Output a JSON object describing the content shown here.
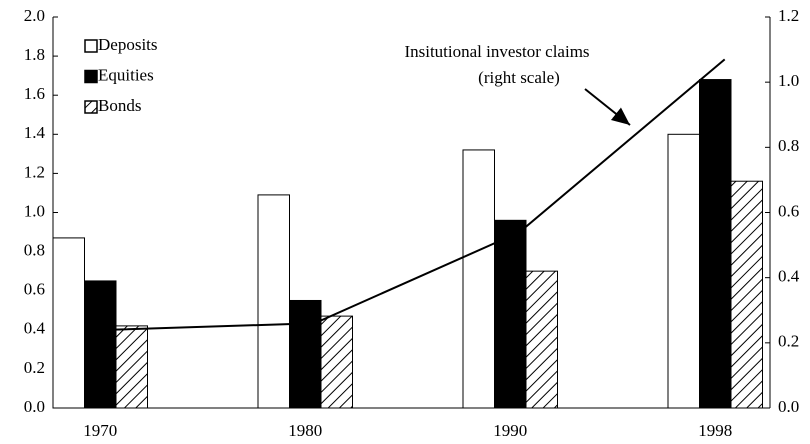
{
  "chart_data": {
    "type": "bar",
    "categories": [
      "1970",
      "1980",
      "1990",
      "1998"
    ],
    "series": [
      {
        "name": "Deposits",
        "color": "#ffffff",
        "values": [
          0.87,
          1.09,
          1.32,
          1.4
        ]
      },
      {
        "name": "Equities",
        "color": "#000000",
        "values": [
          0.65,
          0.55,
          0.96,
          1.68
        ]
      },
      {
        "name": "Bonds",
        "color": "#ffffff",
        "hatch": true,
        "values": [
          0.42,
          0.47,
          0.7,
          1.16
        ]
      },
      {
        "name": "Insitutional investor claims",
        "type": "line",
        "axis": "y2",
        "color": "#000000",
        "values": [
          0.24,
          0.26,
          0.54,
          1.07
        ]
      }
    ],
    "annotation": [
      "Insitutional investor claims",
      "(right scale)"
    ],
    "ylim": [
      0,
      2.0
    ],
    "yticks": [
      {
        "value": 0,
        "label": "0.0"
      },
      0.2,
      0.4,
      0.6,
      0.8,
      {
        "value": 1,
        "label": "1.0"
      },
      1.2,
      1.4,
      1.6,
      1.8,
      {
        "value": 2,
        "label": "2.0"
      }
    ],
    "y2lim": [
      0,
      1.2
    ],
    "y2ticks": [
      {
        "value": 0,
        "label": "0.0"
      },
      0.2,
      0.4,
      0.6,
      0.8,
      {
        "value": 1,
        "label": "1.0"
      },
      1.2
    ],
    "grid": false,
    "legend": "upper left"
  }
}
